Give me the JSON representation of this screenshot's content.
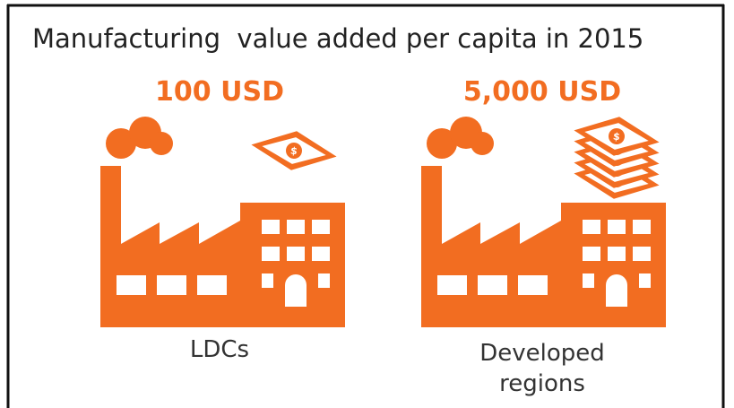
{
  "title": "Manufacturing  value added per capita in 2015",
  "panels": [
    {
      "amount": "100 USD",
      "label_lines": [
        "LDCs"
      ]
    },
    {
      "amount": "5,000 USD",
      "label_lines": [
        "Developed",
        "regions"
      ]
    }
  ]
}
